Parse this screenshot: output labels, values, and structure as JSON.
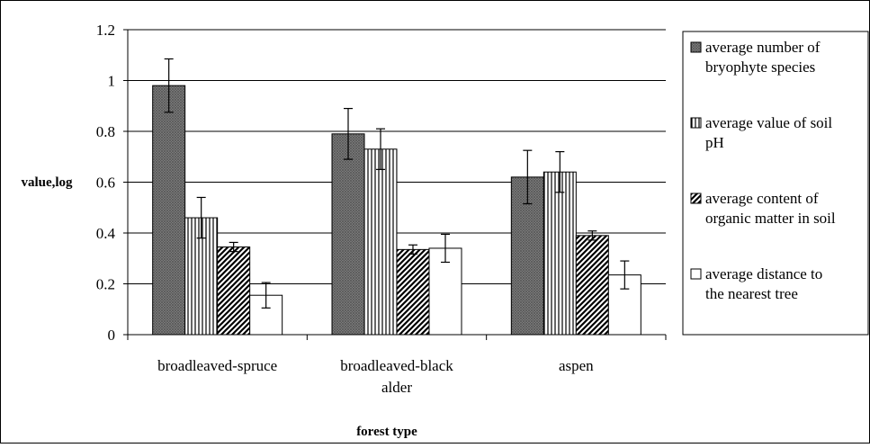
{
  "chart_data": {
    "type": "bar",
    "title": "",
    "xlabel": "forest type",
    "ylabel": "value,log",
    "ylim": [
      0,
      1.2
    ],
    "yticks": [
      "0",
      "0.2",
      "0.4",
      "0.6",
      "0.8",
      "1",
      "1.2"
    ],
    "ytick_values": [
      0,
      0.2,
      0.4,
      0.6,
      0.8,
      1.0,
      1.2
    ],
    "grid": true,
    "legend_position": "right",
    "categories": [
      [
        "broadleaved-spruce"
      ],
      [
        "broadleaved-black",
        "alder"
      ],
      [
        "aspen"
      ]
    ],
    "series": [
      {
        "name_lines": [
          "average number of",
          "bryophyte species"
        ],
        "pattern": "crosshatch-dark",
        "values": [
          0.98,
          0.79,
          0.62
        ],
        "errors": [
          0.105,
          0.1,
          0.105
        ]
      },
      {
        "name_lines": [
          "average value of soil",
          "pH"
        ],
        "pattern": "vertical-lines",
        "values": [
          0.46,
          0.73,
          0.64
        ],
        "errors": [
          0.08,
          0.08,
          0.08
        ]
      },
      {
        "name_lines": [
          "average content of",
          "organic matter in soil"
        ],
        "pattern": "diagonal-lines",
        "values": [
          0.345,
          0.335,
          0.39
        ],
        "errors": [
          0.018,
          0.018,
          0.018
        ]
      },
      {
        "name_lines": [
          "average distance to",
          "the nearest tree"
        ],
        "pattern": "white",
        "values": [
          0.155,
          0.34,
          0.235
        ],
        "errors": [
          0.05,
          0.055,
          0.055
        ]
      }
    ]
  }
}
